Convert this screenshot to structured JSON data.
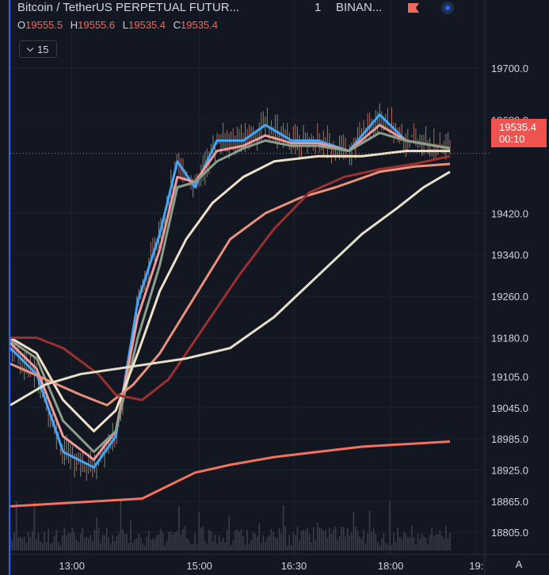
{
  "header": {
    "symbol": "Bitcoin / TetherUS PERPETUAL FUTUR...",
    "interval": "1",
    "exchange": "BINAN...",
    "flag_color": "#ef6a5b",
    "live_icon": "circle-dot-icon"
  },
  "ohlc": {
    "o_label": "O",
    "o": "19555.5",
    "h_label": "H",
    "h": "19555.6",
    "l_label": "L",
    "l": "19535.4",
    "c_label": "C",
    "c": "19535.4"
  },
  "indicators_toggle": {
    "icon": "chevron-down-icon",
    "count": "15"
  },
  "last_price": {
    "value": "19535.4",
    "countdown": "00:10",
    "color": "#ef5350"
  },
  "scale_button": "A",
  "chart_data": {
    "type": "candlestick",
    "interval": "1m",
    "price_axis_ticks": [
      "19700.0",
      "19600.0",
      "19420.0",
      "19340.0",
      "19260.0",
      "19180.0",
      "19105.0",
      "19045.0",
      "18985.0",
      "18925.0",
      "18865.0",
      "18805.0"
    ],
    "time_axis_ticks": [
      "13:00",
      "15:00",
      "16:30",
      "18:00",
      "19:"
    ],
    "price_range": [
      18770,
      19770
    ],
    "last_price": 19535.4,
    "ma_lines": [
      {
        "color": "#42a5f5",
        "points": [
          [
            0,
            19160
          ],
          [
            0.06,
            19110
          ],
          [
            0.12,
            18960
          ],
          [
            0.19,
            18930
          ],
          [
            0.24,
            18990
          ],
          [
            0.29,
            19250
          ],
          [
            0.34,
            19380
          ],
          [
            0.38,
            19520
          ],
          [
            0.42,
            19470
          ],
          [
            0.47,
            19560
          ],
          [
            0.53,
            19560
          ],
          [
            0.58,
            19590
          ],
          [
            0.64,
            19560
          ],
          [
            0.7,
            19560
          ],
          [
            0.77,
            19540
          ],
          [
            0.84,
            19610
          ],
          [
            0.9,
            19560
          ],
          [
            1,
            19545
          ]
        ]
      },
      {
        "color": "#ef9a9a",
        "points": [
          [
            0,
            19170
          ],
          [
            0.06,
            19120
          ],
          [
            0.12,
            18990
          ],
          [
            0.19,
            18945
          ],
          [
            0.24,
            19000
          ],
          [
            0.29,
            19220
          ],
          [
            0.34,
            19350
          ],
          [
            0.38,
            19490
          ],
          [
            0.42,
            19480
          ],
          [
            0.47,
            19540
          ],
          [
            0.53,
            19550
          ],
          [
            0.58,
            19570
          ],
          [
            0.64,
            19555
          ],
          [
            0.7,
            19555
          ],
          [
            0.77,
            19540
          ],
          [
            0.84,
            19590
          ],
          [
            0.9,
            19560
          ],
          [
            1,
            19545
          ]
        ]
      },
      {
        "color": "#8d9e8a",
        "points": [
          [
            0,
            19175
          ],
          [
            0.06,
            19140
          ],
          [
            0.12,
            19020
          ],
          [
            0.19,
            18960
          ],
          [
            0.24,
            19000
          ],
          [
            0.29,
            19180
          ],
          [
            0.34,
            19320
          ],
          [
            0.38,
            19470
          ],
          [
            0.42,
            19480
          ],
          [
            0.47,
            19520
          ],
          [
            0.53,
            19545
          ],
          [
            0.58,
            19560
          ],
          [
            0.64,
            19550
          ],
          [
            0.7,
            19550
          ],
          [
            0.77,
            19540
          ],
          [
            0.84,
            19575
          ],
          [
            0.9,
            19560
          ],
          [
            1,
            19545
          ]
        ]
      },
      {
        "color": "#f0e0c8",
        "points": [
          [
            0,
            19180
          ],
          [
            0.06,
            19150
          ],
          [
            0.12,
            19060
          ],
          [
            0.19,
            19000
          ],
          [
            0.24,
            19040
          ],
          [
            0.29,
            19150
          ],
          [
            0.34,
            19270
          ],
          [
            0.4,
            19370
          ],
          [
            0.46,
            19440
          ],
          [
            0.53,
            19490
          ],
          [
            0.6,
            19520
          ],
          [
            0.7,
            19530
          ],
          [
            0.8,
            19530
          ],
          [
            0.9,
            19540
          ],
          [
            1,
            19540
          ]
        ]
      },
      {
        "color": "#e9907a",
        "points": [
          [
            0,
            19130
          ],
          [
            0.08,
            19100
          ],
          [
            0.16,
            19070
          ],
          [
            0.22,
            19050
          ],
          [
            0.28,
            19090
          ],
          [
            0.34,
            19150
          ],
          [
            0.42,
            19260
          ],
          [
            0.5,
            19370
          ],
          [
            0.58,
            19420
          ],
          [
            0.66,
            19450
          ],
          [
            0.74,
            19470
          ],
          [
            0.84,
            19500
          ],
          [
            0.92,
            19510
          ],
          [
            1,
            19515
          ]
        ]
      },
      {
        "color": "#9c2f2f",
        "points": [
          [
            0,
            19180
          ],
          [
            0.06,
            19180
          ],
          [
            0.12,
            19160
          ],
          [
            0.2,
            19110
          ],
          [
            0.24,
            19070
          ],
          [
            0.3,
            19060
          ],
          [
            0.36,
            19100
          ],
          [
            0.44,
            19200
          ],
          [
            0.52,
            19300
          ],
          [
            0.6,
            19390
          ],
          [
            0.68,
            19460
          ],
          [
            0.76,
            19490
          ],
          [
            0.84,
            19505
          ],
          [
            0.92,
            19515
          ],
          [
            1,
            19530
          ]
        ]
      },
      {
        "color": "#e6e0c8",
        "points": [
          [
            0,
            19050
          ],
          [
            0.08,
            19090
          ],
          [
            0.16,
            19110
          ],
          [
            0.24,
            19120
          ],
          [
            0.32,
            19130
          ],
          [
            0.4,
            19140
          ],
          [
            0.5,
            19160
          ],
          [
            0.6,
            19220
          ],
          [
            0.7,
            19300
          ],
          [
            0.8,
            19380
          ],
          [
            0.88,
            19430
          ],
          [
            0.94,
            19470
          ],
          [
            1,
            19500
          ]
        ]
      },
      {
        "color": "#f4725d",
        "points": [
          [
            0,
            18855
          ],
          [
            0.1,
            18860
          ],
          [
            0.2,
            18865
          ],
          [
            0.3,
            18870
          ],
          [
            0.36,
            18895
          ],
          [
            0.42,
            18920
          ],
          [
            0.5,
            18935
          ],
          [
            0.6,
            18950
          ],
          [
            0.7,
            18960
          ],
          [
            0.8,
            18970
          ],
          [
            0.9,
            18975
          ],
          [
            1,
            18980
          ]
        ]
      }
    ],
    "crosshair_price": 19535.4
  }
}
